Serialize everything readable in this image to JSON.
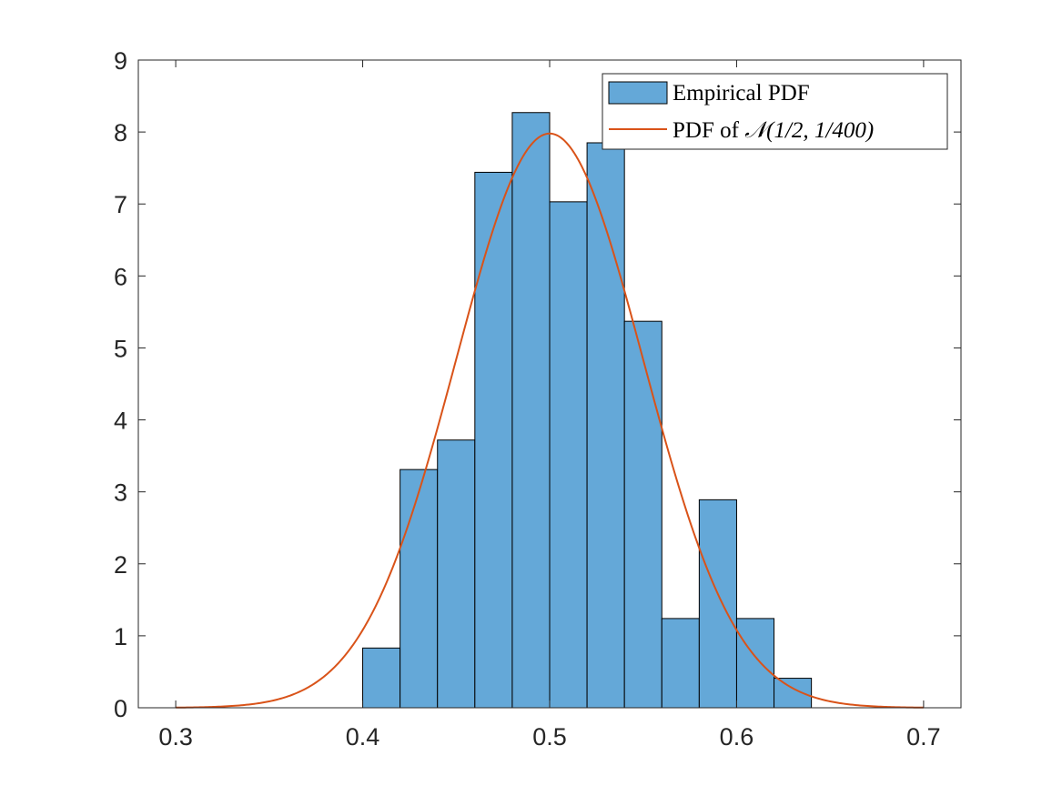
{
  "chart_data": {
    "type": "bar",
    "title": "",
    "xlabel": "",
    "ylabel": "",
    "xlim": [
      0.28,
      0.72
    ],
    "ylim": [
      0,
      9
    ],
    "xticks": [
      "0.3",
      "0.4",
      "0.5",
      "0.6",
      "0.7"
    ],
    "xtick_values": [
      0.3,
      0.4,
      0.5,
      0.6,
      0.7
    ],
    "yticks": [
      "0",
      "1",
      "2",
      "3",
      "4",
      "5",
      "6",
      "7",
      "8",
      "9"
    ],
    "ytick_values": [
      0,
      1,
      2,
      3,
      4,
      5,
      6,
      7,
      8,
      9
    ],
    "grid": false,
    "legend_position": "top-right",
    "histogram": {
      "name": "Empirical PDF",
      "bin_edges": [
        0.4,
        0.42,
        0.44,
        0.46,
        0.48,
        0.5,
        0.52,
        0.54,
        0.56,
        0.58,
        0.6,
        0.62,
        0.64
      ],
      "values": [
        0.83,
        3.31,
        3.72,
        7.44,
        8.27,
        7.03,
        7.85,
        5.37,
        1.24,
        2.89,
        1.24,
        0.41
      ],
      "color": "#64a8d8"
    },
    "curve": {
      "name_prefix": "PDF of ",
      "name_math": "𝒩(1/2, 1/400)",
      "mean": 0.5,
      "variance": 0.0025,
      "x_range": [
        0.3,
        0.7
      ],
      "color": "#d95319"
    }
  }
}
